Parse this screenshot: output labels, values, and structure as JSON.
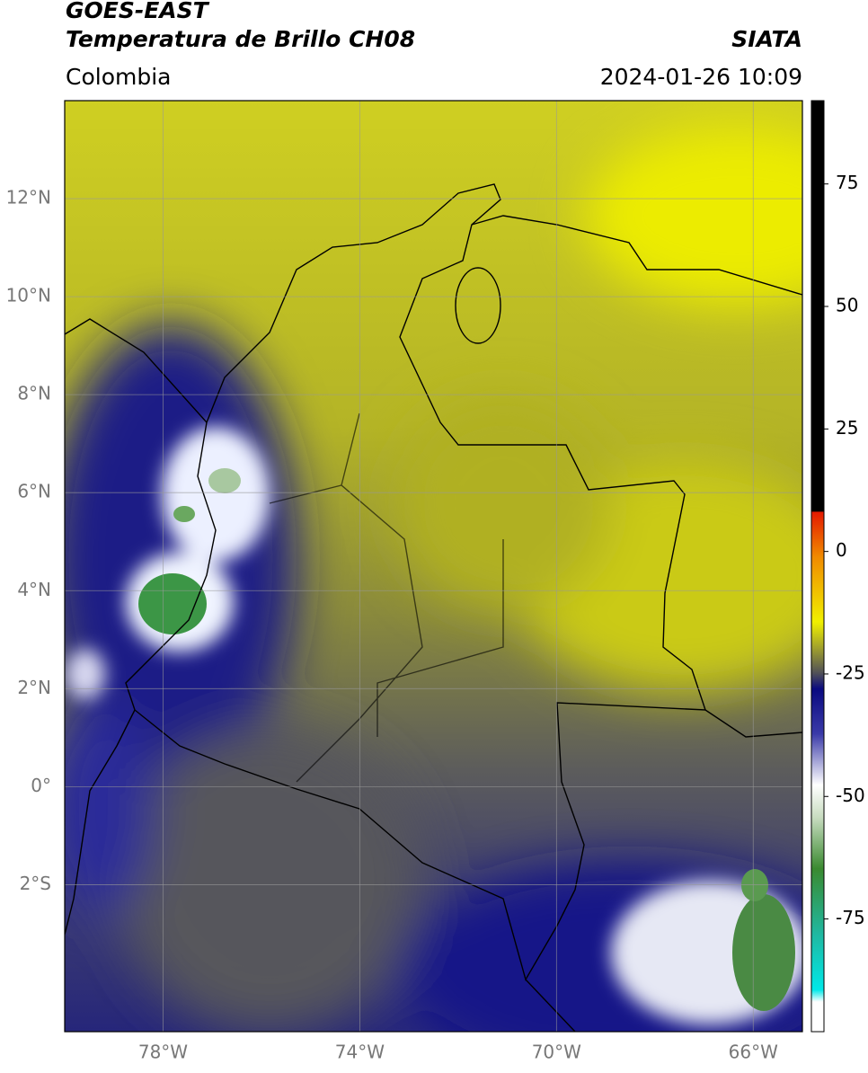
{
  "header": {
    "title": "GOES-EAST",
    "subtitle": "Temperatura de Brillo CH08",
    "source": "SIATA",
    "region": "Colombia",
    "timestamp": "2024-01-26 10:09"
  },
  "map": {
    "xlim": [
      -80,
      -65
    ],
    "ylim": [
      -5,
      14
    ],
    "xticks": [
      {
        "value": -78,
        "label": "78°W"
      },
      {
        "value": -74,
        "label": "74°W"
      },
      {
        "value": -70,
        "label": "70°W"
      },
      {
        "value": -66,
        "label": "66°W"
      }
    ],
    "yticks": [
      {
        "value": 12,
        "label": "12°N"
      },
      {
        "value": 10,
        "label": "10°N"
      },
      {
        "value": 8,
        "label": "8°N"
      },
      {
        "value": 6,
        "label": "6°N"
      },
      {
        "value": 4,
        "label": "4°N"
      },
      {
        "value": 2,
        "label": "2°N"
      },
      {
        "value": 0,
        "label": "0°"
      },
      {
        "value": -2,
        "label": "2°S"
      }
    ],
    "grid": true
  },
  "colorbar": {
    "lim": [
      -98,
      92
    ],
    "ticks": [
      75,
      50,
      25,
      0,
      -25,
      -50,
      -75
    ]
  }
}
